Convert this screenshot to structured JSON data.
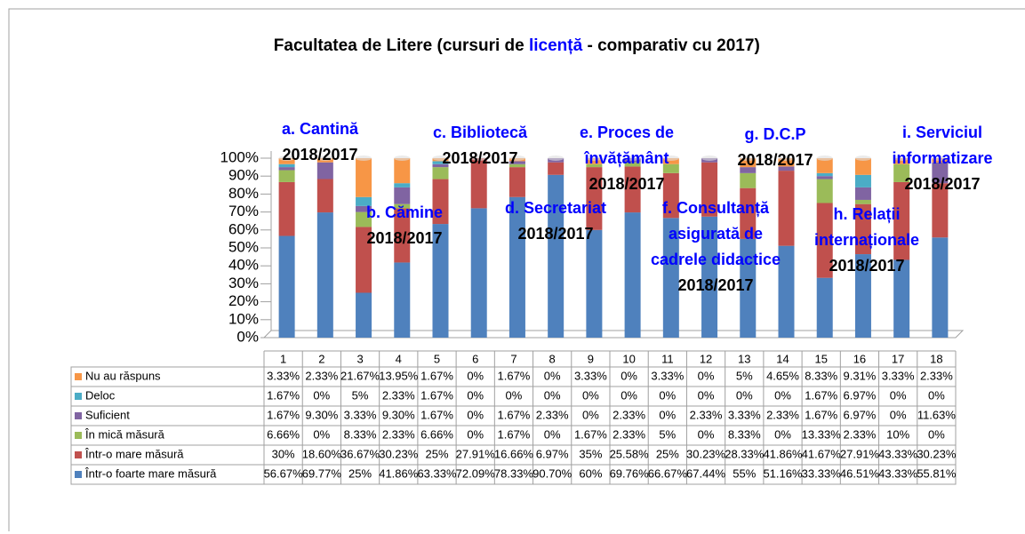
{
  "chart_data": {
    "type": "bar",
    "stacked": true,
    "title": [
      "Facultatea de Litere (cursuri de ",
      "licență",
      " - comparativ cu 2017)"
    ],
    "title_highlight_color": "#0000ff",
    "categories": [
      "1",
      "2",
      "3",
      "4",
      "5",
      "6",
      "7",
      "8",
      "9",
      "10",
      "11",
      "12",
      "13",
      "14",
      "15",
      "16",
      "17",
      "18"
    ],
    "ylim": [
      0,
      100
    ],
    "yticks": [
      {
        "value": 0,
        "label": "0%"
      },
      {
        "value": 10,
        "label": "10%"
      },
      {
        "value": 20,
        "label": "20%"
      },
      {
        "value": 30,
        "label": "30%"
      },
      {
        "value": 40,
        "label": "40%"
      },
      {
        "value": 50,
        "label": "50%"
      },
      {
        "value": 60,
        "label": "60%"
      },
      {
        "value": 70,
        "label": "70%"
      },
      {
        "value": 80,
        "label": "80%"
      },
      {
        "value": 90,
        "label": "90%"
      },
      {
        "value": 100,
        "label": "100%"
      }
    ],
    "series": [
      {
        "name": "Într-o foarte mare măsură",
        "color": "#4f81bd",
        "values": [
          56.67,
          69.77,
          25,
          41.86,
          63.33,
          72.09,
          78.33,
          90.7,
          60,
          69.76,
          66.67,
          67.44,
          55,
          51.16,
          33.33,
          46.51,
          43.33,
          55.81
        ],
        "value_labels": [
          "56.67%",
          "69.77%",
          "25%",
          "41.86%",
          "63.33%",
          "72.09%",
          "78.33%",
          "90.70%",
          "60%",
          "69.76%",
          "66.67%",
          "67.44%",
          "55%",
          "51.16%",
          "33.33%",
          "46.51%",
          "43.33%",
          "55.81%"
        ]
      },
      {
        "name": "Într-o mare măsură",
        "color": "#c0504d",
        "values": [
          30,
          18.6,
          36.67,
          30.23,
          25,
          27.91,
          16.66,
          6.97,
          35,
          25.58,
          25,
          30.23,
          28.33,
          41.86,
          41.67,
          27.91,
          43.33,
          30.23
        ],
        "value_labels": [
          "30%",
          "18.60%",
          "36.67%",
          "30.23%",
          "25%",
          "27.91%",
          "16.66%",
          "6.97%",
          "35%",
          "25.58%",
          "25%",
          "30.23%",
          "28.33%",
          "41.86%",
          "41.67%",
          "27.91%",
          "43.33%",
          "30.23%"
        ]
      },
      {
        "name": "În mică măsură",
        "color": "#9bbb59",
        "values": [
          6.66,
          0,
          8.33,
          2.33,
          6.66,
          0,
          1.67,
          0,
          1.67,
          2.33,
          5,
          0,
          8.33,
          0,
          13.33,
          2.33,
          10,
          0
        ],
        "value_labels": [
          "6.66%",
          "0%",
          "8.33%",
          "2.33%",
          "6.66%",
          "0%",
          "1.67%",
          "0%",
          "1.67%",
          "2.33%",
          "5%",
          "0%",
          "8.33%",
          "0%",
          "13.33%",
          "2.33%",
          "10%",
          "0%"
        ]
      },
      {
        "name": "Suficient",
        "color": "#8064a2",
        "values": [
          1.67,
          9.3,
          3.33,
          9.3,
          1.67,
          0,
          1.67,
          2.33,
          0,
          2.33,
          0,
          2.33,
          3.33,
          2.33,
          1.67,
          6.97,
          0,
          11.63
        ],
        "value_labels": [
          "1.67%",
          "9.30%",
          "3.33%",
          "9.30%",
          "1.67%",
          "0%",
          "1.67%",
          "2.33%",
          "0%",
          "2.33%",
          "0%",
          "2.33%",
          "3.33%",
          "2.33%",
          "1.67%",
          "6.97%",
          "0%",
          "11.63%"
        ]
      },
      {
        "name": "Deloc",
        "color": "#4bacc6",
        "values": [
          1.67,
          0,
          5,
          2.33,
          1.67,
          0,
          0,
          0,
          0,
          0,
          0,
          0,
          0,
          0,
          1.67,
          6.97,
          0,
          0
        ],
        "value_labels": [
          "1.67%",
          "0%",
          "5%",
          "2.33%",
          "1.67%",
          "0%",
          "0%",
          "0%",
          "0%",
          "0%",
          "0%",
          "0%",
          "0%",
          "0%",
          "1.67%",
          "6.97%",
          "0%",
          "0%"
        ]
      },
      {
        "name": "Nu au răspuns",
        "color": "#f79646",
        "values": [
          3.33,
          2.33,
          21.67,
          13.95,
          1.67,
          0,
          1.67,
          0,
          3.33,
          0,
          3.33,
          0,
          5,
          4.65,
          8.33,
          9.31,
          3.33,
          2.33
        ],
        "value_labels": [
          "3.33%",
          "2.33%",
          "21.67%",
          "13.95%",
          "1.67%",
          "0%",
          "1.67%",
          "0%",
          "3.33%",
          "0%",
          "3.33%",
          "0%",
          "5%",
          "4.65%",
          "8.33%",
          "9.31%",
          "3.33%",
          "2.33%"
        ]
      }
    ],
    "annotation_color": "#0000ff",
    "annotations": [
      {
        "lines": [
          "a. Cantină",
          "2018/2017"
        ]
      },
      {
        "lines": [
          "b. Cămine",
          "2018/2017"
        ]
      },
      {
        "lines": [
          "c. Bibliotecă",
          "2018/2017"
        ]
      },
      {
        "lines": [
          "d. Secretariat",
          "2018/2017"
        ]
      },
      {
        "lines": [
          "e. Proces de",
          "învățământ",
          "2018/2017"
        ]
      },
      {
        "lines": [
          "f. Consultanță",
          "asigurată de",
          "cadrele didactice",
          "2018/2017"
        ]
      },
      {
        "lines": [
          "g. D.C.P",
          "2018/2017"
        ]
      },
      {
        "lines": [
          "h. Relații",
          "internaționale",
          "2018/2017"
        ]
      },
      {
        "lines": [
          "i. Serviciul",
          "informatizare",
          "2018/2017"
        ]
      }
    ]
  }
}
